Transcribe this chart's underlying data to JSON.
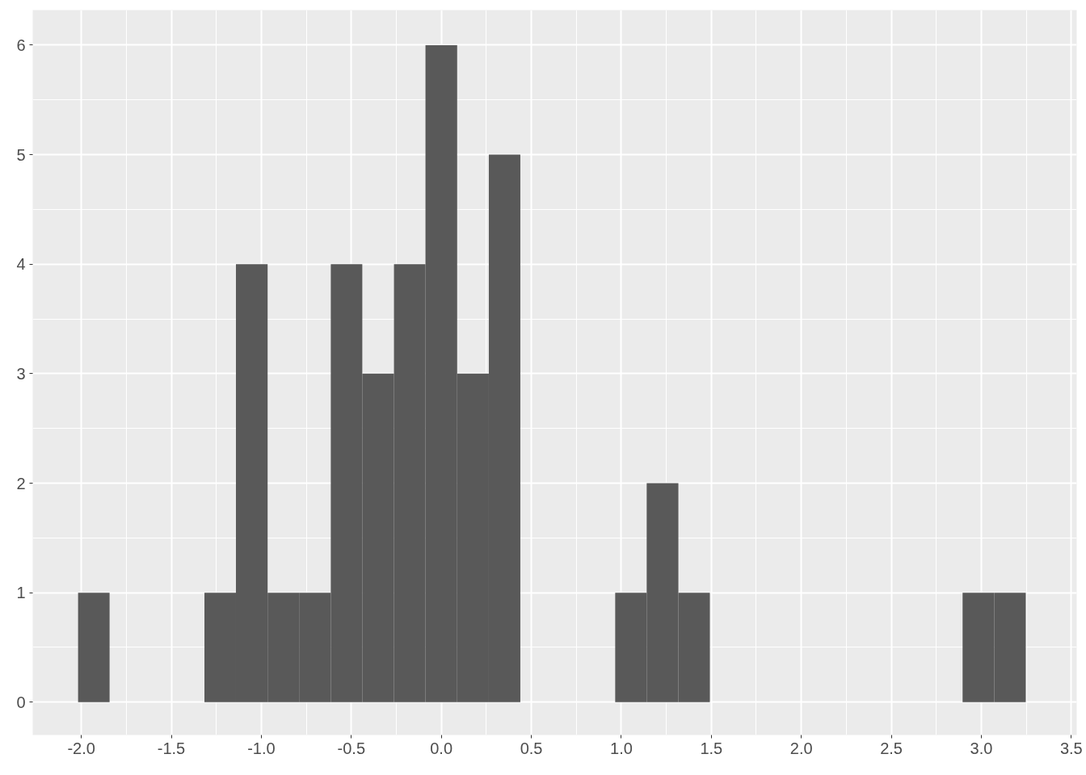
{
  "chart_data": {
    "type": "histogram",
    "bins": [
      -2.018,
      -1.843,
      -1.667,
      -1.492,
      -1.316,
      -1.141,
      -0.965,
      -0.79,
      -0.614,
      -0.439,
      -0.263,
      -0.088,
      0.088,
      0.264,
      0.439,
      0.615,
      0.79,
      0.966,
      1.141,
      1.317,
      1.492,
      1.668,
      1.843,
      2.019,
      2.194,
      2.37,
      2.545,
      2.721,
      2.896,
      3.072,
      3.247
    ],
    "values": [
      1,
      0,
      0,
      0,
      1,
      4,
      1,
      1,
      4,
      3,
      4,
      6,
      3,
      5,
      0,
      0,
      0,
      1,
      2,
      1,
      0,
      0,
      0,
      0,
      0,
      0,
      0,
      0,
      1,
      1
    ],
    "color": "#595959",
    "xlim": [
      -2.27,
      3.53
    ],
    "xticks": [
      {
        "value": -2.0,
        "label": "-2.0"
      },
      {
        "value": -1.5,
        "label": "-1.5"
      },
      {
        "value": -1.0,
        "label": "-1.0"
      },
      {
        "value": -0.5,
        "label": "-0.5"
      },
      {
        "value": 0.0,
        "label": "0.0"
      },
      {
        "value": 0.5,
        "label": "0.5"
      },
      {
        "value": 1.0,
        "label": "1.0"
      },
      {
        "value": 1.5,
        "label": "1.5"
      },
      {
        "value": 2.0,
        "label": "2.0"
      },
      {
        "value": 2.5,
        "label": "2.5"
      },
      {
        "value": 3.0,
        "label": "3.0"
      },
      {
        "value": 3.5,
        "label": "3.5"
      }
    ],
    "ylim": [
      -0.3,
      6.32
    ],
    "yticks": [
      0,
      1,
      2,
      3,
      4,
      5,
      6
    ],
    "grid": true
  }
}
